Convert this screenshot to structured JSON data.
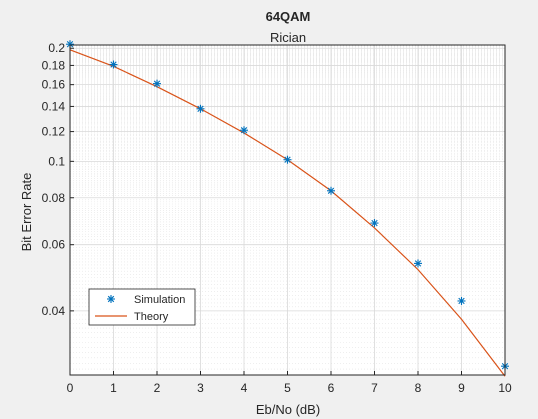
{
  "chart_data": {
    "type": "line",
    "title": "64QAM",
    "subtitle": "Rician",
    "xlabel": "Eb/No (dB)",
    "ylabel": "Bit Error Rate",
    "y_scale": "log",
    "xlim": [
      0,
      10
    ],
    "ylim": [
      0.027,
      0.204
    ],
    "x_ticks": [
      "0",
      "1",
      "2",
      "3",
      "4",
      "5",
      "6",
      "7",
      "8",
      "9",
      "10"
    ],
    "y_ticks": [
      "0.04",
      "0.06",
      "0.08",
      "0.1",
      "0.12",
      "0.14",
      "0.16",
      "0.18",
      "0.2"
    ],
    "grid": true,
    "minor_grid": true,
    "legend_position": "bottom-left",
    "colors": {
      "simulation": "#0072BD",
      "theory": "#D95319"
    },
    "series": [
      {
        "name": "Simulation",
        "style": "markers-asterisk",
        "x": [
          0,
          1,
          2,
          3,
          4,
          5,
          6,
          7,
          8,
          9,
          10
        ],
        "y": [
          0.205,
          0.181,
          0.161,
          0.138,
          0.121,
          0.101,
          0.0835,
          0.0685,
          0.0535,
          0.0425,
          0.0285
        ]
      },
      {
        "name": "Theory",
        "style": "line",
        "x": [
          0,
          1,
          2,
          3,
          4,
          5,
          6,
          7,
          8,
          9,
          10
        ],
        "y": [
          0.198,
          0.179,
          0.158,
          0.138,
          0.119,
          0.101,
          0.0835,
          0.0665,
          0.0515,
          0.038,
          0.0268
        ]
      }
    ]
  }
}
